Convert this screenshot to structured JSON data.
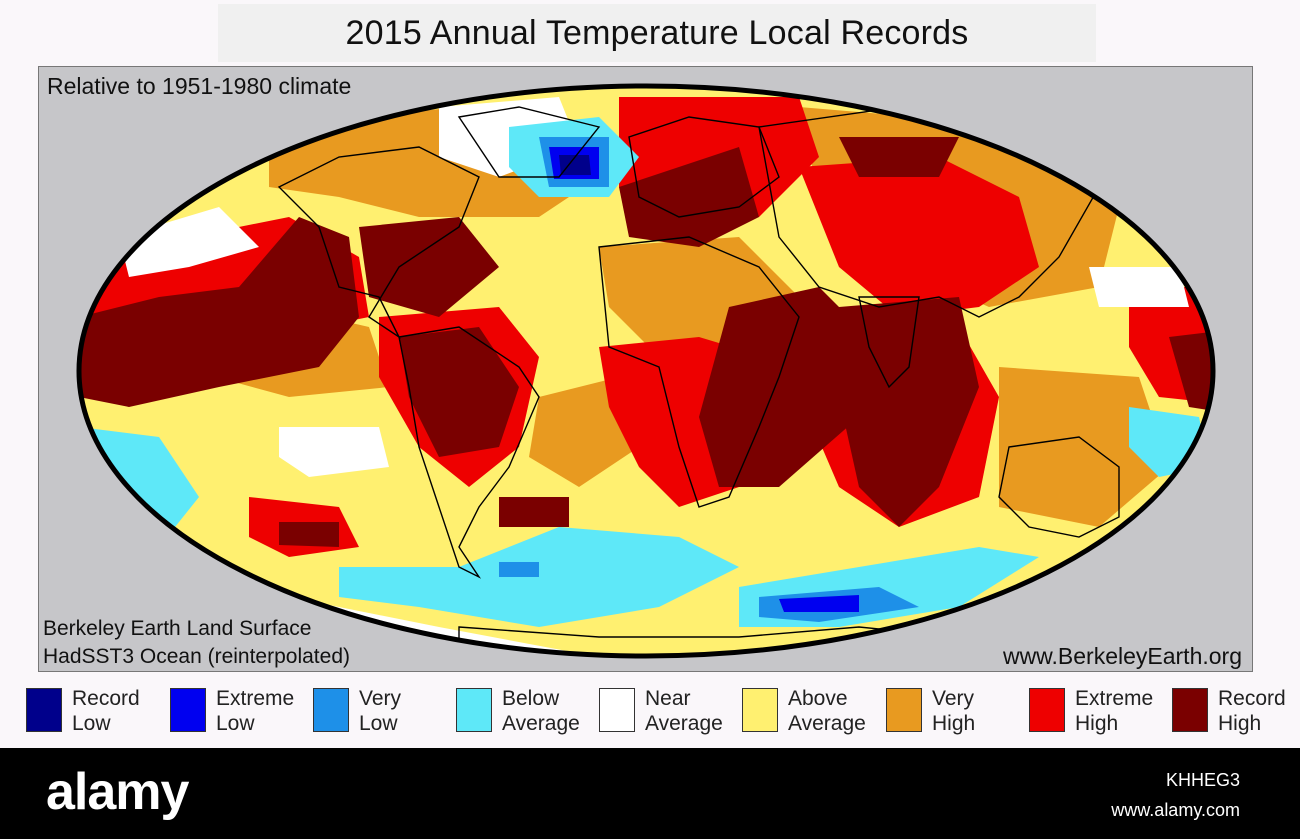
{
  "title": "2015  Annual Temperature Local Records",
  "map": {
    "subtitle": "Relative to 1951-1980 climate",
    "credit_land": "Berkeley Earth Land Surface",
    "credit_ocean": "HadSST3 Ocean (reinterpolated)",
    "credit_url": "www.BerkeleyEarth.org"
  },
  "legend": [
    {
      "line1": "Record",
      "line2": "Low",
      "color": "#00008b"
    },
    {
      "line1": "Extreme",
      "line2": "Low",
      "color": "#0000f0"
    },
    {
      "line1": "Very",
      "line2": "Low",
      "color": "#1e90e8"
    },
    {
      "line1": "Below",
      "line2": "Average",
      "color": "#5ee8f8"
    },
    {
      "line1": "Near",
      "line2": "Average",
      "color": "#ffffff"
    },
    {
      "line1": "Above",
      "line2": "Average",
      "color": "#fff070"
    },
    {
      "line1": "Very",
      "line2": "High",
      "color": "#e89a20"
    },
    {
      "line1": "Extreme",
      "line2": "High",
      "color": "#ee0000"
    },
    {
      "line1": "Record",
      "line2": "High",
      "color": "#7a0000"
    }
  ],
  "footer": {
    "brand": "alamy",
    "image_id": "KHHEG3",
    "image_url": "www.alamy.com"
  }
}
